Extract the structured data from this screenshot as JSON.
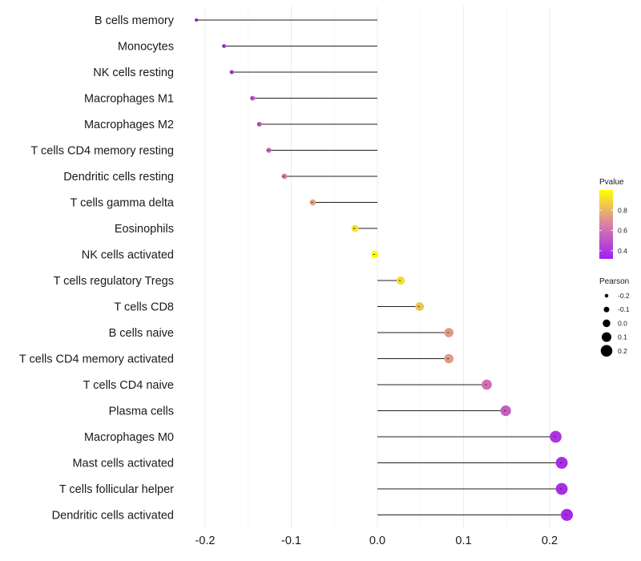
{
  "chart_data": {
    "type": "lollipop",
    "title": "",
    "xlabel": "",
    "ylabel": "",
    "xlim": [
      -0.22,
      0.235
    ],
    "x_ticks": [
      -0.2,
      -0.1,
      0.0,
      0.1,
      0.2
    ],
    "x_tick_labels": [
      "-0.2",
      "-0.1",
      "0.0",
      "0.1",
      "0.2"
    ],
    "grid": true,
    "categories": [
      "B cells memory",
      "Monocytes",
      "NK cells resting",
      "Macrophages M1",
      "Macrophages M2",
      "T cells CD4 memory resting",
      "Dendritic cells resting",
      "T cells gamma delta",
      "Eosinophils",
      "NK cells activated",
      "T cells regulatory  Tregs ",
      "T cells CD8",
      "B cells naive",
      "T cells CD4 memory activated",
      "T cells CD4 naive",
      "Plasma cells",
      "Macrophages M0",
      "Mast cells activated",
      "T cells follicular helper",
      "Dendritic cells activated"
    ],
    "pearson": [
      -0.21,
      -0.178,
      -0.169,
      -0.145,
      -0.137,
      -0.126,
      -0.108,
      -0.075,
      -0.026,
      -0.003,
      0.027,
      0.049,
      0.083,
      0.083,
      0.127,
      0.149,
      0.207,
      0.214,
      0.214,
      0.22
    ],
    "pvalue": [
      0.33,
      0.4,
      0.42,
      0.5,
      0.53,
      0.56,
      0.63,
      0.75,
      0.92,
      0.99,
      0.91,
      0.84,
      0.73,
      0.73,
      0.6,
      0.54,
      0.39,
      0.37,
      0.37,
      0.35
    ],
    "legend": {
      "placement": "right",
      "color": {
        "title": "Pvalue",
        "ticks": [
          0.4,
          0.6,
          0.8
        ],
        "tick_labels": [
          "0.4",
          "0.6",
          "0.8"
        ],
        "range": [
          0.32,
          1.0
        ],
        "low_color": "#a020f0",
        "mid_color": "#d980a8",
        "high_color": "#ffff00"
      },
      "size": {
        "title": "Pearson",
        "values": [
          -0.2,
          -0.1,
          0.0,
          0.1,
          0.2
        ],
        "labels": [
          "-0.2",
          "-0.1",
          "0.0",
          "0.1",
          "0.2"
        ]
      }
    }
  }
}
